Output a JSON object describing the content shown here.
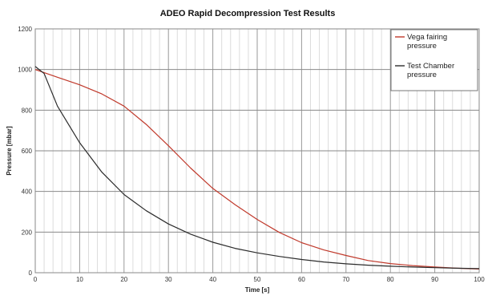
{
  "chart_data": {
    "type": "line",
    "title": "ADEO Rapid Decompression Test Results",
    "xlabel": "Time [s]",
    "ylabel": "Pressure [mbar]",
    "xlim": [
      0,
      100
    ],
    "ylim": [
      0,
      1200
    ],
    "x_ticks": [
      0,
      10,
      20,
      30,
      40,
      50,
      60,
      70,
      80,
      90,
      100
    ],
    "y_ticks": [
      0,
      200,
      400,
      600,
      800,
      1000,
      1200
    ],
    "x_tick_labels": [
      "0",
      "10",
      "20",
      "30",
      "40",
      "50",
      "60",
      "70",
      "80",
      "90",
      "100"
    ],
    "y_tick_labels": [
      "0",
      "200",
      "400",
      "600",
      "800",
      "1000",
      "1200"
    ],
    "grid": true,
    "legend_position": "top-right",
    "series": [
      {
        "name": "Vega fairing pressure",
        "color": "#c0392b",
        "points": [
          [
            0,
            1000
          ],
          [
            5,
            962
          ],
          [
            10,
            925
          ],
          [
            15,
            880
          ],
          [
            20,
            820
          ],
          [
            25,
            730
          ],
          [
            30,
            625
          ],
          [
            35,
            515
          ],
          [
            40,
            415
          ],
          [
            45,
            335
          ],
          [
            50,
            262
          ],
          [
            55,
            198
          ],
          [
            60,
            148
          ],
          [
            65,
            112
          ],
          [
            70,
            85
          ],
          [
            75,
            60
          ],
          [
            80,
            45
          ],
          [
            85,
            35
          ],
          [
            90,
            28
          ],
          [
            95,
            22
          ],
          [
            100,
            18
          ]
        ]
      },
      {
        "name": "Test Chamber pressure",
        "color": "#2c2c2c",
        "points": [
          [
            0,
            1015
          ],
          [
            2,
            980
          ],
          [
            5,
            820
          ],
          [
            10,
            640
          ],
          [
            15,
            495
          ],
          [
            20,
            385
          ],
          [
            25,
            305
          ],
          [
            30,
            240
          ],
          [
            35,
            190
          ],
          [
            40,
            150
          ],
          [
            45,
            120
          ],
          [
            50,
            98
          ],
          [
            55,
            80
          ],
          [
            60,
            65
          ],
          [
            65,
            53
          ],
          [
            70,
            44
          ],
          [
            75,
            37
          ],
          [
            80,
            32
          ],
          [
            85,
            28
          ],
          [
            90,
            25
          ],
          [
            95,
            22
          ],
          [
            100,
            20
          ]
        ]
      }
    ]
  }
}
